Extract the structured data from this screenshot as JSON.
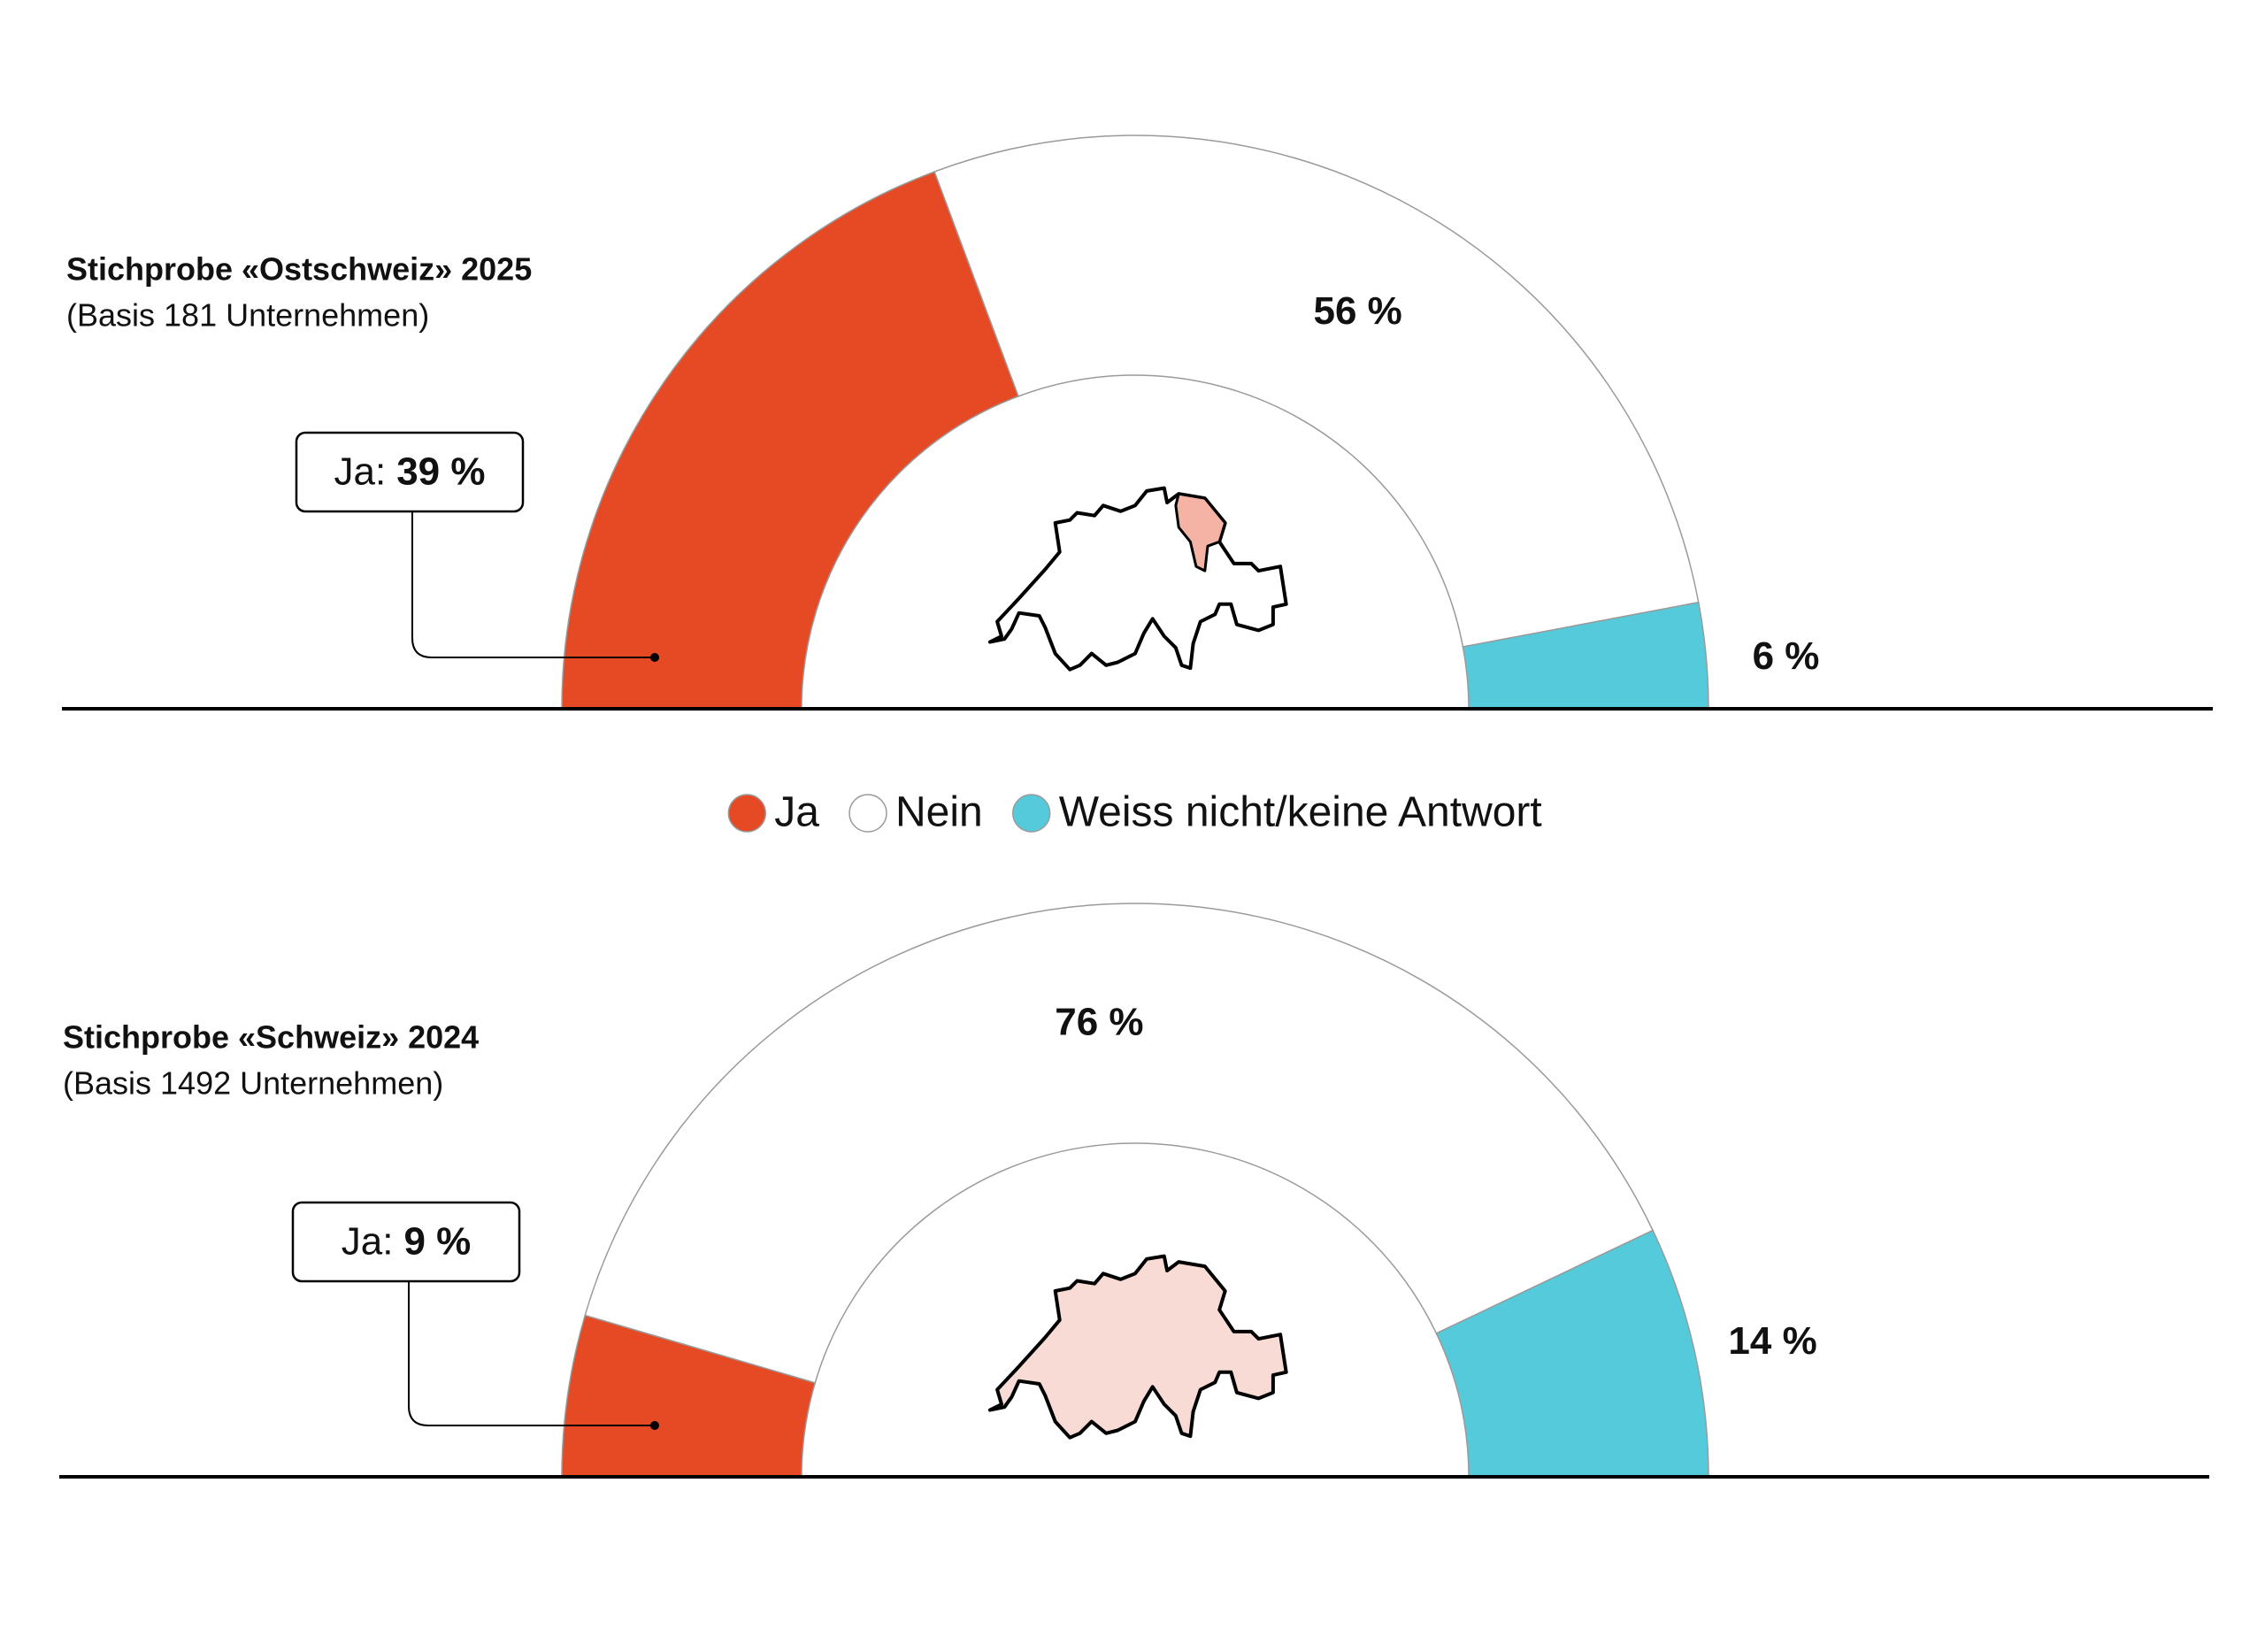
{
  "legend": {
    "labels": [
      "Ja",
      "Nein",
      "Weiss nicht/keine Antwort"
    ],
    "colors": [
      "#e64a25",
      "#ffffff",
      "#55cadb"
    ]
  },
  "chart_data": [
    {
      "type": "semi-donut",
      "title": "Stichprobe «Ostschweiz» 2025",
      "subtitle": "(Basis 181 Unternehmen)",
      "categories": [
        "Ja",
        "Nein",
        "Weiss nicht/keine Antwort"
      ],
      "values": [
        39,
        56,
        6
      ],
      "value_labels": [
        "39 %",
        "56 %",
        "6 %"
      ],
      "callout_label": "Ja:"
    },
    {
      "type": "semi-donut",
      "title": "Stichprobe «Schweiz» 2024",
      "subtitle": "(Basis 1492 Unternehmen)",
      "categories": [
        "Ja",
        "Nein",
        "Weiss nicht/keine Antwort"
      ],
      "values": [
        9,
        76,
        14
      ],
      "value_labels": [
        "9 %",
        "76 %",
        "14 %"
      ],
      "callout_label": "Ja:"
    }
  ]
}
